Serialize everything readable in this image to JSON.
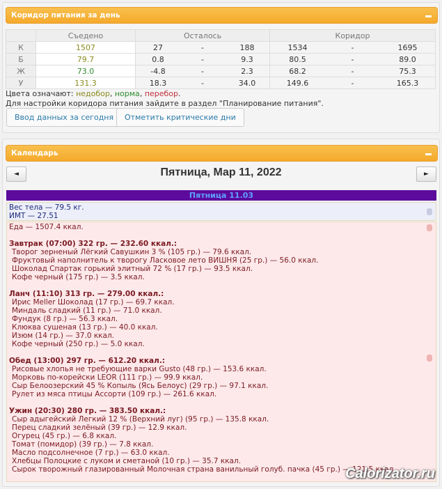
{
  "corridor": {
    "title": "Коридор питания за день",
    "headers": [
      "Съедено",
      "Осталось",
      "Коридор"
    ],
    "rows": [
      {
        "label": "К",
        "eaten": "1507",
        "eaten_status": "under",
        "left_min": "27",
        "left_max": "188",
        "cor_min": "1534",
        "cor_max": "1695"
      },
      {
        "label": "Б",
        "eaten": "79.7",
        "eaten_status": "under",
        "left_min": "0.8",
        "left_max": "9.3",
        "cor_min": "80.5",
        "cor_max": "89.0"
      },
      {
        "label": "Ж",
        "eaten": "73.0",
        "eaten_status": "norm",
        "left_min": "-4.8",
        "left_max": "2.3",
        "cor_min": "68.2",
        "cor_max": "75.3"
      },
      {
        "label": "У",
        "eaten": "131.3",
        "eaten_status": "under",
        "left_min": "18.3",
        "left_max": "34.0",
        "cor_min": "149.6",
        "cor_max": "165.3"
      }
    ],
    "dash": "-",
    "legend_prefix": "Цвета означают: ",
    "legend_under": "недобор",
    "legend_norm": "норма",
    "legend_over": "перебор",
    "note": "Для настройки коридора питания зайдите в раздел \"Планирование питания\".",
    "btn_today": "Ввод данных за сегодня",
    "btn_critical": "Отметить критические дни"
  },
  "colors": {
    "under": "#8a8a20",
    "norm": "#2e8b2e",
    "over": "#c0303a",
    "header": "#f5a92c",
    "daybar": "#5c0b9c"
  },
  "calendar": {
    "title": "Календарь",
    "date": "Пятница, Мар 11, 2022",
    "prev": "◄",
    "next": "►",
    "day": "Пятница 11.03",
    "weight": "Вес тела — 79.5 кг.",
    "bmi": "ИМТ — 27.51",
    "food_total": "Еда — 1507.4 ккал.",
    "meals": [
      {
        "title": "Завтрак (07:00) 322 гр. — 232.60 ккал.:",
        "items": [
          "Творог зерненый Лёгкий Савушкин 3 % (105 гр.) — 79.6 ккал.",
          "Фруктовый наполнитель к творогу Ласковое лето ВИШНЯ (25 гр.) — 56.0 ккал.",
          "Шоколад Спартак горький элитный 72 % (17 гр.) — 93.5 ккал.",
          "Кофе черный (175 гр.) — 3.5 ккал."
        ]
      },
      {
        "title": "Ланч (11:10) 313 гр. — 279.00 ккал.:",
        "items": [
          "Ирис Meller Шоколад (17 гр.) — 69.7 ккал.",
          "Миндаль сладкий (11 гр.) — 71.0 ккал.",
          "Фундук (8 гр.) — 56.3 ккал.",
          "Клюква сушеная (13 гр.) — 40.0 ккал.",
          "Изюм (14 гр.) — 37.0 ккал.",
          "Кофе черный (250 гр.) — 5.0 ккал."
        ]
      },
      {
        "title": "Обед (13:00) 297 гр. — 612.20 ккал.:",
        "items": [
          "Рисовые хлопья не требующие варки Gusto (48 гр.) — 153.6 ккал.",
          "Морковь по-корейски LEOR (111 гр.) — 99.9 ккал.",
          "Сыр Белоозерский 45 % Копыль (Ясь Белоус) (29 гр.) — 97.1 ккал.",
          "Рулет из мяса птицы Ассорти (109 гр.) — 261.6 ккал."
        ]
      },
      {
        "title": "Ужин (20:30) 280 гр. — 383.50 ккал.:",
        "items": [
          "Сыр адыгейский Легкий 12 % (Верхний луг) (95 гр.) — 135.8 ккал.",
          "Перец сладкий зелёный (39 гр.) — 12.9 ккал.",
          "Огурец (45 гр.) — 6.8 ккал.",
          "Томат (помидор) (39 гр.) — 7.8 ккал.",
          "Масло подсолнечное (7 гр.) — 63.0 ккал.",
          "Хлебцы Полоцкие с луком и сметаной (10 гр.) — 35.7 ккал.",
          "Сырок творожный глазированный Молочная страна ванильный голуб. пачка (45 гр.) — 121.5 ккал."
        ]
      }
    ]
  },
  "watermark": "Calorizator.ru"
}
